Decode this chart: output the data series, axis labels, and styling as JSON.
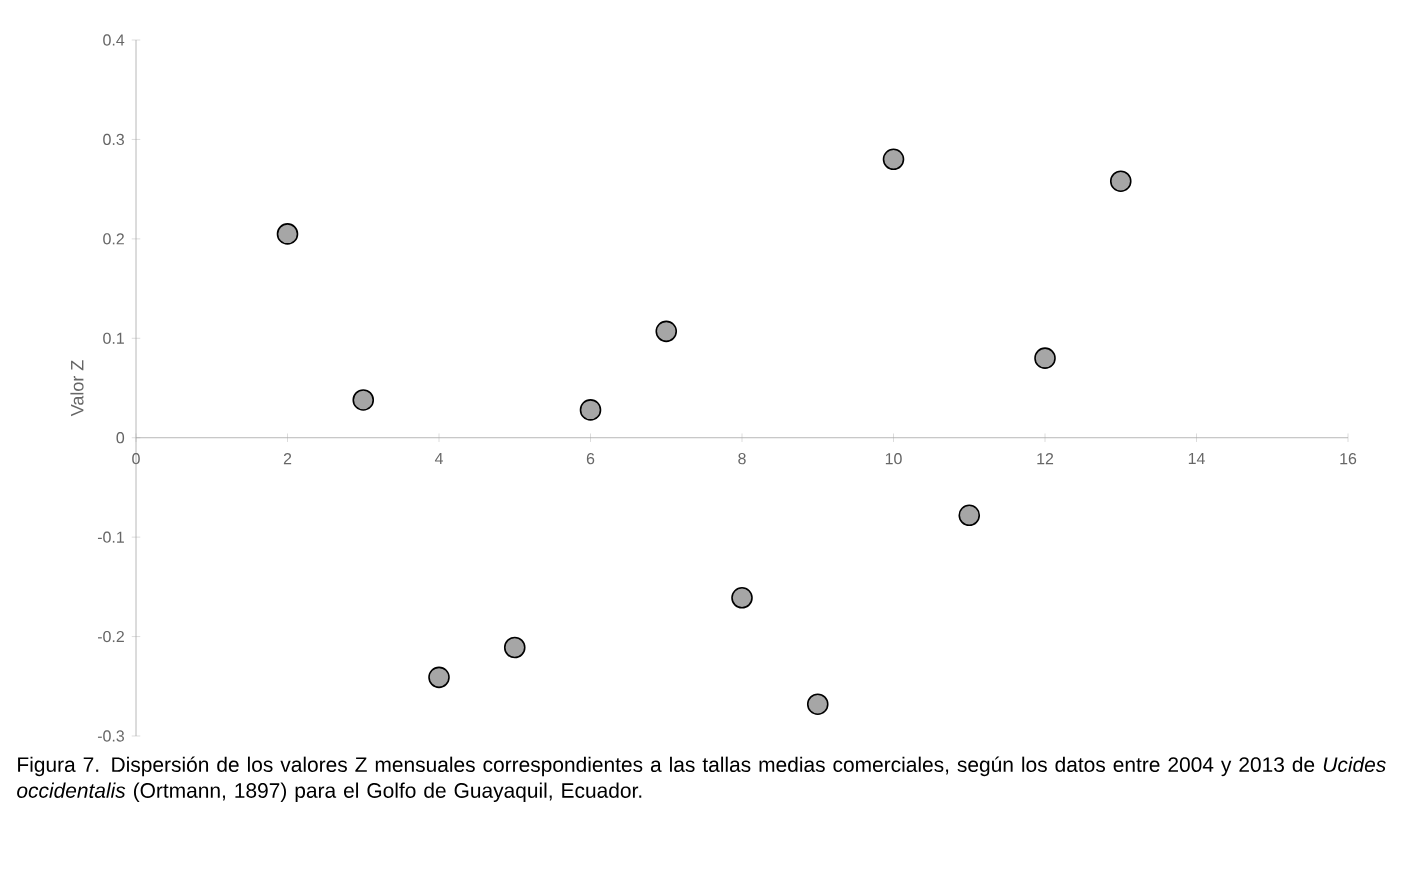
{
  "chart_data": {
    "type": "scatter",
    "ylabel": "Valor Z",
    "x": [
      2,
      3,
      4,
      5,
      6,
      7,
      8,
      9,
      10,
      11,
      12,
      13
    ],
    "values": [
      0.205,
      0.038,
      -0.241,
      -0.211,
      0.028,
      0.107,
      -0.161,
      -0.268,
      0.28,
      -0.078,
      0.08,
      0.258
    ],
    "color": "#a6a6a6",
    "marker": "circle",
    "xlim": [
      0,
      16
    ],
    "xticks": [
      0,
      2,
      4,
      6,
      8,
      10,
      12,
      14,
      16
    ],
    "ylim": [
      -0.3,
      0.4
    ],
    "yticks": [
      -0.3,
      -0.2,
      -0.1,
      0,
      0.1,
      0.2,
      0.3,
      0.4
    ],
    "annotations": [
      "Figura 7. Dispersión de los valores Z mensuales correspondientes a las tallas medias comerciales, según los datos entre 2004 y 2013 de *Ucides occidentalis* (Ortmann, 1897) para el Golfo de Guayaquil, Ecuador."
    ]
  }
}
